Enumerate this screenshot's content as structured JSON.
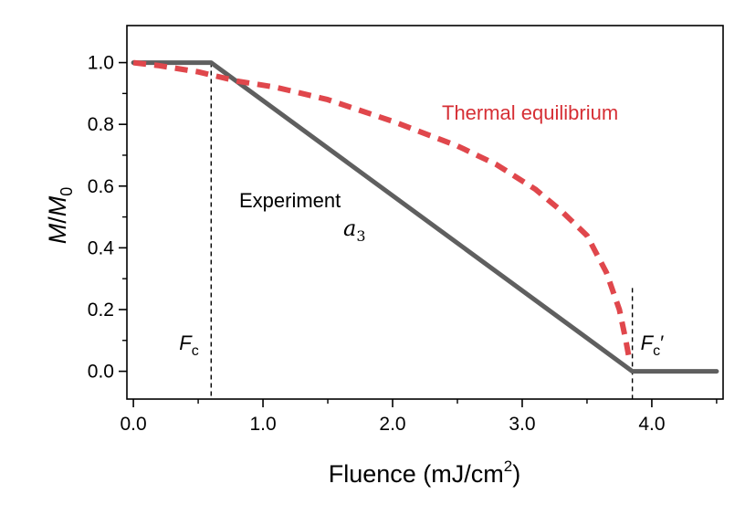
{
  "chart_data": {
    "type": "line",
    "title": "",
    "xlabel": "Fluence (mJ/cm",
    "xlabel_sup": "2",
    "xlabel_close": ")",
    "ylabel_M": "M",
    "ylabel_slash": "/",
    "ylabel_M0": "M",
    "ylabel_M0_sub": "0",
    "xlim": [
      -0.05,
      4.55
    ],
    "ylim": [
      -0.09,
      1.12
    ],
    "xticks": [
      0.0,
      1.0,
      2.0,
      3.0,
      4.0
    ],
    "xtick_labels": [
      "0.0",
      "1.0",
      "2.0",
      "3.0",
      "4.0"
    ],
    "yticks": [
      0.0,
      0.2,
      0.4,
      0.6,
      0.8,
      1.0
    ],
    "ytick_labels": [
      "0.0",
      "0.2",
      "0.4",
      "0.6",
      "0.8",
      "1.0"
    ],
    "series": [
      {
        "name": "Experiment",
        "color": "#5f5f5f",
        "style": "solid",
        "x": [
          0.0,
          0.6,
          3.85,
          4.5
        ],
        "y": [
          1.0,
          1.0,
          0.0,
          0.0
        ]
      },
      {
        "name": "Thermal equilibrium",
        "color": "#e0474c",
        "style": "dashed",
        "x": [
          0.0,
          0.2,
          0.5,
          0.8,
          1.1,
          1.5,
          2.0,
          2.5,
          2.8,
          3.1,
          3.3,
          3.5,
          3.65,
          3.75,
          3.8,
          3.83
        ],
        "y": [
          1.0,
          0.99,
          0.97,
          0.94,
          0.92,
          0.88,
          0.81,
          0.73,
          0.67,
          0.59,
          0.52,
          0.44,
          0.32,
          0.2,
          0.1,
          0.03
        ]
      }
    ],
    "vlines": [
      {
        "x": 0.6,
        "label": "F",
        "sub": "c",
        "prime": ""
      },
      {
        "x": 3.85,
        "label": "F",
        "sub": "c",
        "prime": "′"
      }
    ],
    "annotations": {
      "experiment": "Experiment",
      "a3_base": "a",
      "a3_sub": "3",
      "thermal": "Thermal equilibrium"
    }
  }
}
